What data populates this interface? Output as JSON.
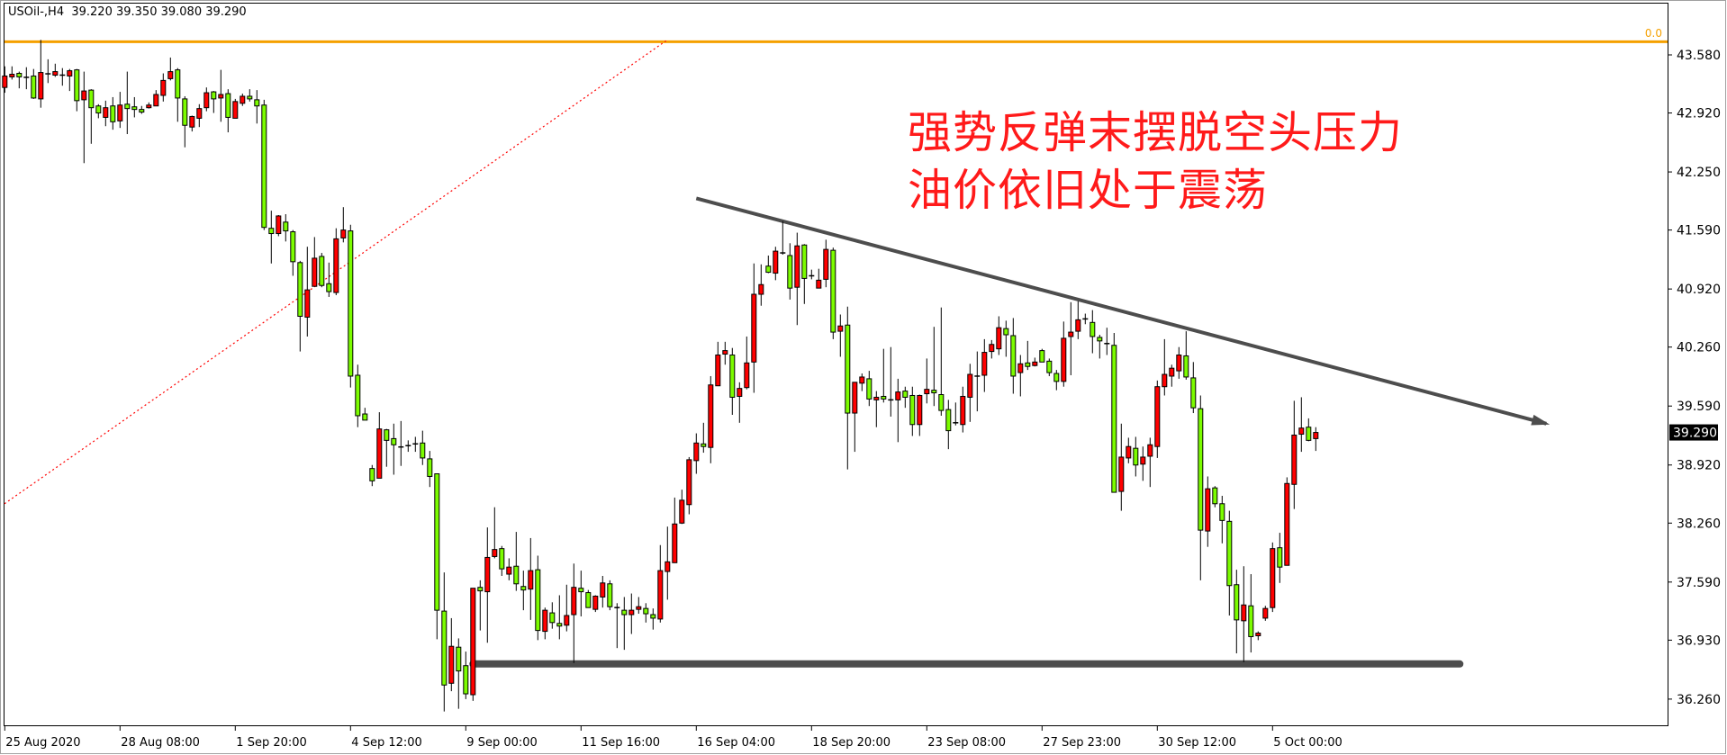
{
  "header": {
    "title": "USOil-,H4  39.220 39.350 39.080 39.290"
  },
  "annotation": {
    "line1": "强势反弹末摆脱空头压力",
    "line2": "油价依旧处于震荡"
  },
  "fib_label": "0.0",
  "current_price_label": "39.290",
  "colors": {
    "up": "#ff0000",
    "down": "#7cfc00",
    "fib": "#f5a000",
    "trendline": "#4d4d4d",
    "dotted": "#ff0000",
    "text": "#ff1a1a"
  },
  "chart_data": {
    "type": "candlestick",
    "ylim": [
      35.95,
      43.89
    ],
    "y_ticks": [
      "43.580",
      "42.920",
      "42.250",
      "41.590",
      "40.920",
      "40.260",
      "39.590",
      "38.920",
      "38.260",
      "37.590",
      "36.930",
      "36.260"
    ],
    "x_labels": [
      {
        "bar": 0,
        "text": "25 Aug 2020"
      },
      {
        "bar": 16,
        "text": "28 Aug 08:00"
      },
      {
        "bar": 32,
        "text": "1 Sep 20:00"
      },
      {
        "bar": 48,
        "text": "4 Sep 12:00"
      },
      {
        "bar": 64,
        "text": "9 Sep 00:00"
      },
      {
        "bar": 80,
        "text": "11 Sep 16:00"
      },
      {
        "bar": 96,
        "text": "16 Sep 04:00"
      },
      {
        "bar": 112,
        "text": "18 Sep 20:00"
      },
      {
        "bar": 128,
        "text": "23 Sep 08:00"
      },
      {
        "bar": 144,
        "text": "27 Sep 23:00"
      },
      {
        "bar": 160,
        "text": "30 Sep 12:00"
      },
      {
        "bar": 176,
        "text": "5 Oct 00:00"
      }
    ],
    "candles": [
      [
        43.21,
        43.45,
        43.15,
        43.34
      ],
      [
        43.33,
        43.45,
        43.3,
        43.36
      ],
      [
        43.37,
        43.39,
        43.2,
        43.33
      ],
      [
        43.33,
        43.44,
        43.19,
        43.32
      ],
      [
        43.34,
        43.42,
        43.08,
        43.09
      ],
      [
        43.08,
        43.75,
        42.98,
        43.38
      ],
      [
        43.36,
        43.53,
        43.26,
        43.37
      ],
      [
        43.35,
        43.48,
        43.33,
        43.39
      ],
      [
        43.35,
        43.43,
        43.23,
        43.35
      ],
      [
        43.34,
        43.42,
        43.17,
        43.4
      ],
      [
        43.41,
        43.42,
        42.94,
        43.06
      ],
      [
        43.07,
        43.39,
        42.35,
        43.17
      ],
      [
        43.18,
        43.19,
        42.57,
        42.98
      ],
      [
        43.0,
        43.02,
        42.86,
        42.92
      ],
      [
        42.87,
        43.06,
        42.77,
        42.98
      ],
      [
        43.0,
        43.1,
        42.73,
        42.82
      ],
      [
        42.83,
        43.16,
        42.75,
        43.01
      ],
      [
        43.02,
        43.39,
        42.68,
        42.97
      ],
      [
        42.99,
        43.1,
        42.87,
        42.96
      ],
      [
        42.96,
        43.0,
        42.91,
        42.93
      ],
      [
        42.98,
        43.04,
        42.97,
        43.01
      ],
      [
        43.0,
        43.18,
        43.0,
        43.13
      ],
      [
        43.12,
        43.37,
        43.05,
        43.29
      ],
      [
        43.31,
        43.55,
        43.29,
        43.39
      ],
      [
        43.41,
        43.43,
        42.82,
        43.09
      ],
      [
        43.08,
        43.11,
        42.53,
        42.78
      ],
      [
        42.76,
        42.89,
        42.71,
        42.88
      ],
      [
        42.86,
        43.02,
        42.76,
        42.97
      ],
      [
        42.98,
        43.21,
        42.94,
        43.15
      ],
      [
        43.16,
        43.17,
        42.92,
        43.08
      ],
      [
        43.09,
        43.41,
        42.82,
        43.13
      ],
      [
        43.14,
        43.19,
        42.7,
        42.87
      ],
      [
        42.86,
        43.08,
        42.86,
        43.05
      ],
      [
        43.03,
        43.14,
        43.0,
        43.11
      ],
      [
        43.11,
        43.19,
        43.05,
        43.08
      ],
      [
        43.07,
        43.18,
        42.8,
        43.0
      ],
      [
        43.01,
        43.07,
        41.59,
        41.62
      ],
      [
        41.61,
        41.81,
        41.21,
        41.55
      ],
      [
        41.55,
        41.76,
        41.52,
        41.75
      ],
      [
        41.68,
        41.77,
        41.46,
        41.58
      ],
      [
        41.57,
        41.59,
        41.07,
        41.23
      ],
      [
        41.22,
        41.24,
        40.21,
        40.61
      ],
      [
        40.6,
        41.4,
        40.38,
        40.91
      ],
      [
        40.95,
        41.51,
        40.95,
        41.27
      ],
      [
        41.29,
        41.33,
        40.94,
        40.96
      ],
      [
        40.98,
        41.22,
        40.83,
        40.89
      ],
      [
        40.88,
        41.61,
        40.85,
        41.49
      ],
      [
        41.5,
        41.85,
        41.45,
        41.59
      ],
      [
        41.58,
        41.65,
        39.8,
        39.93
      ],
      [
        39.94,
        40.06,
        39.35,
        39.48
      ],
      [
        39.5,
        39.57,
        39.43,
        39.43
      ],
      [
        38.88,
        38.92,
        38.68,
        38.74
      ],
      [
        38.77,
        39.52,
        38.77,
        39.33
      ],
      [
        39.32,
        39.33,
        38.9,
        39.2
      ],
      [
        39.22,
        39.39,
        38.81,
        39.15
      ],
      [
        39.13,
        39.42,
        38.91,
        39.12
      ],
      [
        39.13,
        39.2,
        39.07,
        39.15
      ],
      [
        39.15,
        39.24,
        39.07,
        39.17
      ],
      [
        39.17,
        39.31,
        38.92,
        39.0
      ],
      [
        38.99,
        39.08,
        38.67,
        38.79
      ],
      [
        38.82,
        38.82,
        36.94,
        37.27
      ],
      [
        37.26,
        37.7,
        36.12,
        36.42
      ],
      [
        36.44,
        37.18,
        36.35,
        36.86
      ],
      [
        36.85,
        36.95,
        36.15,
        36.58
      ],
      [
        36.64,
        36.8,
        36.26,
        36.32
      ],
      [
        36.31,
        37.52,
        36.24,
        37.52
      ],
      [
        37.53,
        37.61,
        37.04,
        37.49
      ],
      [
        37.48,
        38.21,
        36.9,
        37.87
      ],
      [
        37.88,
        38.44,
        37.86,
        37.96
      ],
      [
        37.97,
        38.0,
        37.66,
        37.74
      ],
      [
        37.68,
        37.86,
        37.61,
        37.76
      ],
      [
        37.77,
        38.16,
        37.49,
        37.57
      ],
      [
        37.54,
        37.72,
        37.27,
        37.5
      ],
      [
        37.51,
        38.09,
        37.16,
        37.72
      ],
      [
        37.73,
        37.89,
        36.93,
        37.04
      ],
      [
        37.03,
        37.3,
        36.94,
        37.27
      ],
      [
        37.24,
        37.36,
        37.06,
        37.13
      ],
      [
        37.12,
        37.44,
        36.94,
        37.09
      ],
      [
        37.1,
        37.56,
        37.03,
        37.21
      ],
      [
        37.22,
        37.8,
        36.67,
        37.53
      ],
      [
        37.52,
        37.72,
        37.2,
        37.48
      ],
      [
        37.47,
        37.5,
        37.3,
        37.3
      ],
      [
        37.28,
        37.44,
        37.25,
        37.43
      ],
      [
        37.42,
        37.66,
        37.3,
        37.58
      ],
      [
        37.57,
        37.61,
        37.27,
        37.31
      ],
      [
        37.3,
        37.35,
        36.84,
        37.3
      ],
      [
        37.27,
        37.42,
        36.82,
        37.22
      ],
      [
        37.22,
        37.46,
        37.0,
        37.27
      ],
      [
        37.28,
        37.42,
        37.23,
        37.31
      ],
      [
        37.29,
        37.35,
        37.13,
        37.23
      ],
      [
        37.22,
        37.29,
        37.05,
        37.18
      ],
      [
        37.17,
        38.01,
        37.13,
        37.72
      ],
      [
        37.71,
        38.22,
        37.39,
        37.82
      ],
      [
        37.81,
        38.55,
        37.81,
        38.25
      ],
      [
        38.26,
        38.64,
        38.25,
        38.52
      ],
      [
        38.47,
        39.01,
        38.36,
        38.98
      ],
      [
        38.97,
        39.28,
        38.82,
        39.17
      ],
      [
        39.16,
        39.4,
        39.06,
        39.13
      ],
      [
        39.12,
        39.93,
        38.94,
        39.83
      ],
      [
        39.82,
        40.32,
        39.82,
        40.17
      ],
      [
        40.18,
        40.32,
        40.06,
        40.22
      ],
      [
        40.17,
        40.25,
        39.49,
        39.69
      ],
      [
        39.7,
        39.86,
        39.4,
        39.79
      ],
      [
        39.8,
        40.38,
        39.78,
        40.08
      ],
      [
        40.09,
        41.21,
        39.74,
        40.86
      ],
      [
        40.86,
        41.2,
        40.73,
        40.97
      ],
      [
        41.18,
        41.3,
        41.1,
        41.11
      ],
      [
        41.1,
        41.4,
        41.02,
        41.35
      ],
      [
        41.33,
        41.69,
        41.31,
        41.33
      ],
      [
        41.3,
        41.44,
        40.8,
        40.93
      ],
      [
        40.94,
        41.56,
        40.51,
        41.41
      ],
      [
        41.42,
        41.43,
        40.75,
        41.04
      ],
      [
        41.07,
        41.14,
        41.03,
        41.07
      ],
      [
        40.93,
        41.15,
        40.93,
        41.02
      ],
      [
        41.03,
        41.48,
        40.94,
        41.37
      ],
      [
        41.36,
        41.39,
        40.35,
        40.43
      ],
      [
        40.44,
        40.63,
        40.15,
        40.5
      ],
      [
        40.51,
        40.72,
        38.87,
        39.51
      ],
      [
        39.51,
        39.86,
        39.07,
        39.86
      ],
      [
        39.85,
        39.96,
        39.76,
        39.92
      ],
      [
        39.9,
        39.99,
        39.59,
        39.67
      ],
      [
        39.66,
        39.76,
        39.35,
        39.69
      ],
      [
        39.7,
        40.24,
        39.63,
        39.67
      ],
      [
        39.66,
        40.26,
        39.47,
        39.66
      ],
      [
        39.66,
        39.9,
        39.18,
        39.75
      ],
      [
        39.76,
        39.81,
        39.57,
        39.69
      ],
      [
        39.71,
        39.81,
        39.25,
        39.38
      ],
      [
        39.38,
        39.72,
        39.25,
        39.71
      ],
      [
        39.73,
        40.13,
        39.62,
        39.78
      ],
      [
        39.77,
        40.49,
        39.59,
        39.74
      ],
      [
        39.72,
        40.71,
        39.48,
        39.54
      ],
      [
        39.55,
        39.66,
        39.1,
        39.31
      ],
      [
        39.4,
        39.63,
        39.37,
        39.4
      ],
      [
        39.38,
        39.81,
        39.29,
        39.7
      ],
      [
        39.69,
        40.07,
        39.41,
        39.95
      ],
      [
        39.93,
        40.21,
        39.53,
        39.93
      ],
      [
        39.94,
        40.35,
        39.75,
        40.2
      ],
      [
        40.21,
        40.34,
        40.13,
        40.29
      ],
      [
        40.24,
        40.61,
        40.17,
        40.48
      ],
      [
        40.47,
        40.56,
        40.15,
        40.4
      ],
      [
        40.39,
        40.59,
        39.73,
        39.93
      ],
      [
        39.97,
        40.17,
        39.7,
        40.07
      ],
      [
        40.08,
        40.33,
        40.0,
        40.04
      ],
      [
        40.05,
        40.14,
        40.04,
        40.09
      ],
      [
        40.22,
        40.24,
        40.09,
        40.09
      ],
      [
        40.1,
        40.13,
        39.93,
        39.97
      ],
      [
        39.96,
        40.0,
        39.77,
        39.87
      ],
      [
        39.87,
        40.55,
        39.81,
        40.36
      ],
      [
        40.38,
        40.77,
        39.94,
        40.43
      ],
      [
        40.44,
        40.78,
        40.35,
        40.57
      ],
      [
        40.58,
        40.64,
        40.52,
        40.58
      ],
      [
        40.54,
        40.68,
        40.19,
        40.38
      ],
      [
        40.37,
        40.4,
        40.13,
        40.33
      ],
      [
        40.31,
        40.48,
        40.17,
        40.29
      ],
      [
        40.28,
        40.42,
        38.61,
        38.61
      ],
      [
        38.62,
        39.39,
        38.4,
        39.01
      ],
      [
        39.0,
        39.23,
        38.94,
        39.13
      ],
      [
        39.11,
        39.24,
        38.79,
        38.92
      ],
      [
        38.93,
        39.13,
        38.74,
        39.01
      ],
      [
        39.02,
        39.23,
        38.67,
        39.15
      ],
      [
        39.13,
        39.88,
        39.0,
        39.81
      ],
      [
        39.81,
        40.35,
        39.71,
        39.95
      ],
      [
        39.93,
        40.06,
        39.81,
        40.02
      ],
      [
        39.99,
        40.26,
        39.9,
        40.17
      ],
      [
        40.16,
        40.44,
        39.89,
        39.92
      ],
      [
        39.91,
        40.09,
        39.51,
        39.57
      ],
      [
        39.56,
        39.71,
        37.61,
        38.18
      ],
      [
        38.17,
        38.79,
        37.99,
        38.65
      ],
      [
        38.66,
        38.68,
        38.44,
        38.48
      ],
      [
        38.48,
        38.57,
        38.03,
        38.29
      ],
      [
        38.28,
        38.4,
        37.21,
        37.55
      ],
      [
        37.56,
        37.73,
        36.78,
        37.16
      ],
      [
        37.15,
        37.77,
        36.68,
        37.33
      ],
      [
        37.32,
        37.68,
        36.79,
        36.97
      ],
      [
        36.98,
        37.03,
        36.93,
        37.01
      ],
      [
        37.18,
        37.32,
        37.15,
        37.29
      ],
      [
        37.3,
        38.04,
        37.25,
        37.97
      ],
      [
        37.98,
        38.15,
        37.58,
        37.76
      ],
      [
        37.78,
        38.78,
        37.78,
        38.71
      ],
      [
        38.7,
        39.65,
        38.42,
        39.26
      ],
      [
        39.27,
        39.69,
        39.07,
        39.34
      ],
      [
        39.35,
        39.45,
        39.19,
        39.2
      ],
      [
        39.22,
        39.35,
        39.08,
        39.29
      ]
    ],
    "fib_level": {
      "label": "0.0",
      "price": 43.73
    },
    "drawings": [
      {
        "type": "dotted-trendline",
        "from": {
          "bar": -0.7,
          "price": 38.48
        },
        "to": {
          "bar": 91.8,
          "price": 43.74
        }
      },
      {
        "type": "trendline-arrow",
        "from": {
          "bar": 96,
          "price": 41.95
        },
        "to": {
          "bar": 214,
          "price": 39.39
        }
      },
      {
        "type": "support-line",
        "from": {
          "bar": 65,
          "price": 36.66
        },
        "to": {
          "bar": 202,
          "price": 36.66
        }
      }
    ],
    "current_price": 39.29
  }
}
